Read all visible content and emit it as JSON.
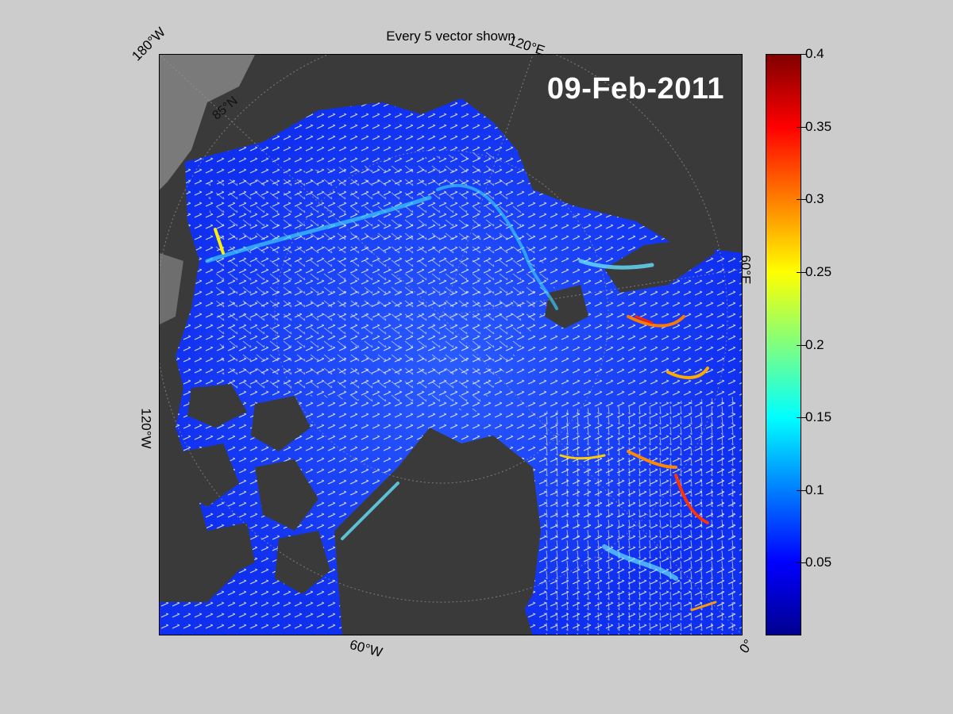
{
  "title": "Every 5 vector shown",
  "date_stamp": "09-Feb-2011",
  "map": {
    "projection": "polar stereographic (north)",
    "longitude_labels": [
      "180°W",
      "120°E",
      "60°E",
      "0°",
      "60°W",
      "120°W"
    ],
    "latitude_labels": [
      "85°N"
    ],
    "land_color": "#3a3a3a",
    "shelf_color": "#7a7a7a",
    "vector_color": "#ffffff"
  },
  "colorbar": {
    "colormap": "jet",
    "min": 0,
    "max": 0.4,
    "tick_labels": [
      "0.4",
      "0.35",
      "0.3",
      "0.25",
      "0.2",
      "0.15",
      "0.1",
      "0.05"
    ],
    "tick_values": [
      0.4,
      0.35,
      0.3,
      0.25,
      0.2,
      0.15,
      0.1,
      0.05
    ]
  }
}
